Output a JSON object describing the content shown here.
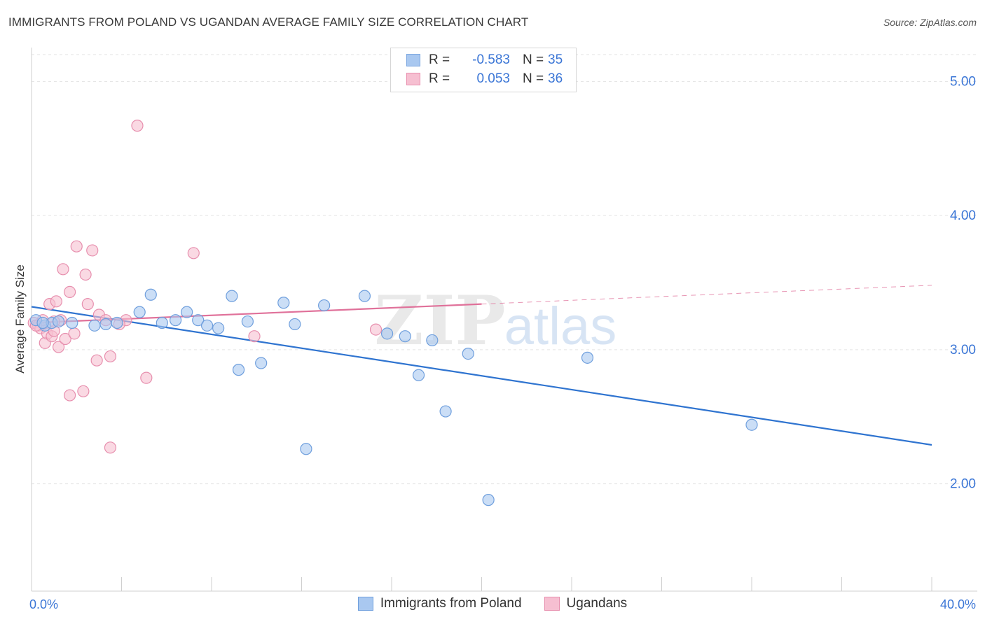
{
  "title": "IMMIGRANTS FROM POLAND VS UGANDAN AVERAGE FAMILY SIZE CORRELATION CHART",
  "source": "Source: ZipAtlas.com",
  "watermark": {
    "zip": "ZIP",
    "atlas": "atlas"
  },
  "legend": {
    "rows": [
      {
        "r_label": "R =",
        "r_value": "-0.583",
        "n_label": "N =",
        "n_value": "35",
        "color": "#a9c8f0",
        "edge": "#7aa6e0"
      },
      {
        "r_label": "R =",
        "r_value": "0.053",
        "n_label": "N =",
        "n_value": "36",
        "color": "#f6bfd1",
        "edge": "#e98fae"
      }
    ]
  },
  "chart_data": {
    "type": "scatter",
    "ylabel": "Average Family Size",
    "xlim": [
      0,
      40
    ],
    "ylim": [
      1.2,
      5.2
    ],
    "x_tick_labels": [
      {
        "x": 0,
        "label": "0.0%"
      },
      {
        "x": 40,
        "label": "40.0%"
      }
    ],
    "y_ticks": [
      2.0,
      3.0,
      4.0,
      5.0
    ],
    "y_tick_labels": [
      "2.00",
      "3.00",
      "4.00",
      "5.00"
    ],
    "grid": true,
    "series": [
      {
        "name": "Immigrants from Poland",
        "color": "#a9c8f0",
        "edge": "#6f9fdd",
        "line_color": "#2f74d0",
        "trend": {
          "x0": 0,
          "y0": 3.32,
          "x1": 40,
          "y1": 2.29,
          "solid_to": 40
        },
        "points": [
          [
            0.2,
            3.22
          ],
          [
            0.6,
            3.18
          ],
          [
            0.9,
            3.2
          ],
          [
            1.2,
            3.21
          ],
          [
            1.8,
            3.2
          ],
          [
            2.8,
            3.18
          ],
          [
            3.3,
            3.19
          ],
          [
            3.8,
            3.2
          ],
          [
            4.8,
            3.28
          ],
          [
            5.3,
            3.41
          ],
          [
            5.8,
            3.2
          ],
          [
            6.4,
            3.22
          ],
          [
            6.9,
            3.28
          ],
          [
            7.4,
            3.22
          ],
          [
            7.8,
            3.18
          ],
          [
            8.3,
            3.16
          ],
          [
            8.9,
            3.4
          ],
          [
            9.2,
            2.85
          ],
          [
            9.6,
            3.21
          ],
          [
            10.2,
            2.9
          ],
          [
            11.2,
            3.35
          ],
          [
            11.7,
            3.19
          ],
          [
            12.2,
            2.26
          ],
          [
            13.0,
            3.33
          ],
          [
            14.8,
            3.4
          ],
          [
            15.8,
            3.12
          ],
          [
            16.6,
            3.1
          ],
          [
            17.2,
            2.81
          ],
          [
            17.8,
            3.07
          ],
          [
            18.4,
            2.54
          ],
          [
            19.4,
            2.97
          ],
          [
            20.3,
            1.88
          ],
          [
            24.7,
            2.94
          ],
          [
            32.0,
            2.44
          ],
          [
            0.5,
            3.2
          ]
        ]
      },
      {
        "name": "Ugandans",
        "color": "#f6bfd1",
        "edge": "#e78fae",
        "line_color": "#e0719a",
        "trend": {
          "x0": 0,
          "y0": 3.2,
          "x1": 40,
          "y1": 3.48,
          "solid_to": 20
        },
        "points": [
          [
            0.1,
            3.2
          ],
          [
            0.3,
            3.18
          ],
          [
            0.4,
            3.16
          ],
          [
            0.5,
            3.22
          ],
          [
            0.6,
            3.05
          ],
          [
            0.7,
            3.12
          ],
          [
            0.8,
            3.34
          ],
          [
            0.9,
            3.1
          ],
          [
            1.0,
            3.14
          ],
          [
            1.1,
            3.36
          ],
          [
            1.2,
            3.02
          ],
          [
            1.3,
            3.22
          ],
          [
            1.4,
            3.6
          ],
          [
            1.5,
            3.08
          ],
          [
            1.7,
            3.43
          ],
          [
            1.7,
            2.66
          ],
          [
            1.9,
            3.12
          ],
          [
            2.0,
            3.77
          ],
          [
            2.3,
            2.69
          ],
          [
            2.4,
            3.56
          ],
          [
            2.5,
            3.34
          ],
          [
            2.7,
            3.74
          ],
          [
            2.9,
            2.92
          ],
          [
            3.0,
            3.26
          ],
          [
            3.3,
            3.22
          ],
          [
            3.5,
            2.95
          ],
          [
            3.5,
            2.27
          ],
          [
            4.2,
            3.22
          ],
          [
            4.7,
            4.67
          ],
          [
            5.1,
            2.79
          ],
          [
            7.2,
            3.72
          ],
          [
            9.9,
            3.1
          ],
          [
            15.3,
            3.15
          ],
          [
            0.2,
            3.18
          ],
          [
            1.0,
            3.21
          ],
          [
            3.9,
            3.19
          ]
        ]
      }
    ]
  }
}
